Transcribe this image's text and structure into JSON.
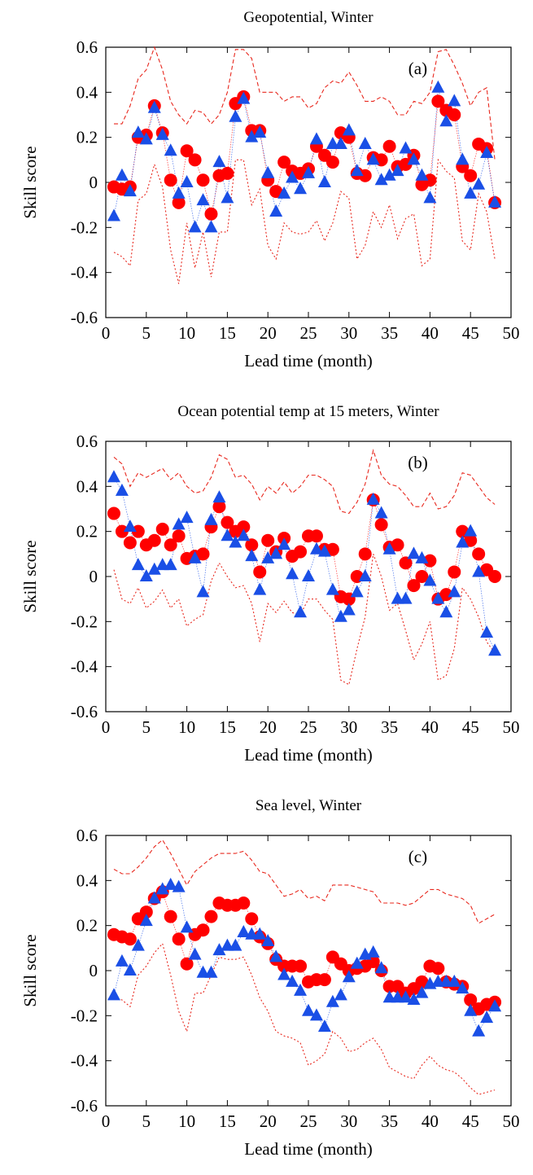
{
  "colors": {
    "red": "#ff0000",
    "blue": "#1a4fe6",
    "bound": "#e8281e",
    "axis": "#000000"
  },
  "chart_data": [
    {
      "type": "scatter",
      "panel_label": "(a)",
      "title": "Geopotential, Winter",
      "xlabel": "Lead time (month)",
      "ylabel": "Skill score",
      "xlim": [
        0,
        50
      ],
      "ylim": [
        -0.6,
        0.6
      ],
      "xticks": [
        "0",
        "5",
        "10",
        "15",
        "20",
        "25",
        "30",
        "35",
        "40",
        "45",
        "50"
      ],
      "yticks": [
        "-0.6",
        "-0.4",
        "-0.2",
        "0",
        "0.2",
        "0.4",
        "0.6"
      ],
      "grid": false,
      "x": [
        1,
        2,
        3,
        4,
        5,
        6,
        7,
        8,
        9,
        10,
        11,
        12,
        13,
        14,
        15,
        16,
        17,
        18,
        19,
        20,
        21,
        22,
        23,
        24,
        25,
        26,
        27,
        28,
        29,
        30,
        31,
        32,
        33,
        34,
        35,
        36,
        37,
        38,
        39,
        40,
        41,
        42,
        43,
        44,
        45,
        46,
        47,
        48
      ],
      "series": [
        {
          "marker": "circle",
          "color": "red",
          "values": [
            -0.02,
            -0.03,
            -0.02,
            0.2,
            0.21,
            0.34,
            0.22,
            0.01,
            -0.09,
            0.14,
            0.1,
            0.01,
            -0.14,
            0.03,
            0.04,
            0.35,
            0.38,
            0.23,
            0.23,
            0.01,
            -0.04,
            0.09,
            0.05,
            0.04,
            0.06,
            0.16,
            0.12,
            0.09,
            0.22,
            0.2,
            0.04,
            0.03,
            0.11,
            0.1,
            0.16,
            0.07,
            0.08,
            0.12,
            -0.01,
            0.01,
            0.36,
            0.32,
            0.3,
            0.07,
            0.03,
            0.17,
            0.15,
            -0.09
          ]
        },
        {
          "marker": "triangle",
          "color": "blue",
          "values": [
            -0.15,
            0.03,
            -0.04,
            0.22,
            0.19,
            0.33,
            0.21,
            0.14,
            -0.05,
            0.0,
            -0.2,
            -0.08,
            -0.2,
            0.09,
            -0.07,
            0.29,
            0.37,
            0.2,
            0.22,
            0.04,
            -0.13,
            -0.05,
            0.02,
            -0.03,
            0.04,
            0.19,
            0.0,
            0.17,
            0.17,
            0.23,
            0.05,
            0.17,
            0.1,
            0.01,
            0.03,
            0.05,
            0.15,
            0.1,
            0.03,
            -0.07,
            0.42,
            0.27,
            0.36,
            0.1,
            -0.05,
            -0.01,
            0.13,
            -0.09
          ]
        },
        {
          "style": "dashed",
          "color": "bound",
          "values": [
            0.26,
            0.26,
            0.34,
            0.46,
            0.5,
            0.6,
            0.5,
            0.36,
            0.3,
            0.26,
            0.32,
            0.31,
            0.26,
            0.3,
            0.4,
            0.59,
            0.59,
            0.55,
            0.4,
            0.4,
            0.4,
            0.36,
            0.38,
            0.38,
            0.33,
            0.35,
            0.42,
            0.45,
            0.44,
            0.49,
            0.43,
            0.36,
            0.36,
            0.38,
            0.36,
            0.3,
            0.3,
            0.36,
            0.35,
            0.4,
            0.58,
            0.59,
            0.52,
            0.44,
            0.34,
            0.4,
            0.42,
            0.1
          ]
        },
        {
          "style": "dotted",
          "color": "bound",
          "values": [
            -0.31,
            -0.33,
            -0.37,
            -0.08,
            -0.05,
            0.08,
            -0.02,
            -0.3,
            -0.45,
            -0.18,
            -0.38,
            -0.22,
            -0.42,
            -0.22,
            -0.22,
            0.1,
            0.1,
            -0.1,
            -0.03,
            -0.28,
            -0.34,
            -0.18,
            -0.22,
            -0.23,
            -0.22,
            -0.17,
            -0.26,
            -0.18,
            -0.04,
            -0.07,
            -0.34,
            -0.28,
            -0.13,
            -0.2,
            -0.1,
            -0.25,
            -0.16,
            -0.14,
            -0.37,
            -0.34,
            0.1,
            0.05,
            0.02,
            -0.26,
            -0.3,
            -0.05,
            -0.13,
            -0.34
          ]
        }
      ]
    },
    {
      "type": "scatter",
      "panel_label": "(b)",
      "title": "Ocean potential temp at 15 meters, Winter",
      "xlabel": "Lead time (month)",
      "ylabel": "Skill score",
      "xlim": [
        0,
        50
      ],
      "ylim": [
        -0.6,
        0.6
      ],
      "xticks": [
        "0",
        "5",
        "10",
        "15",
        "20",
        "25",
        "30",
        "35",
        "40",
        "45",
        "50"
      ],
      "yticks": [
        "-0.6",
        "-0.4",
        "-0.2",
        "0",
        "0.2",
        "0.4",
        "0.6"
      ],
      "grid": false,
      "x": [
        1,
        2,
        3,
        4,
        5,
        6,
        7,
        8,
        9,
        10,
        11,
        12,
        13,
        14,
        15,
        16,
        17,
        18,
        19,
        20,
        21,
        22,
        23,
        24,
        25,
        26,
        27,
        28,
        29,
        30,
        31,
        32,
        33,
        34,
        35,
        36,
        37,
        38,
        39,
        40,
        41,
        42,
        43,
        44,
        45,
        46,
        47,
        48
      ],
      "series": [
        {
          "marker": "circle",
          "color": "red",
          "values": [
            0.28,
            0.2,
            0.15,
            0.2,
            0.14,
            0.16,
            0.21,
            0.14,
            0.18,
            0.08,
            0.09,
            0.1,
            0.22,
            0.31,
            0.24,
            0.2,
            0.22,
            0.14,
            0.02,
            0.16,
            0.11,
            0.17,
            0.09,
            0.11,
            0.18,
            0.18,
            0.12,
            0.12,
            -0.09,
            -0.1,
            0.0,
            0.1,
            0.34,
            0.23,
            0.13,
            0.14,
            0.06,
            -0.04,
            0.0,
            0.07,
            -0.1,
            -0.08,
            0.02,
            0.2,
            0.16,
            0.1,
            0.03,
            0.0
          ]
        },
        {
          "marker": "triangle",
          "color": "blue",
          "values": [
            0.44,
            0.38,
            0.22,
            0.05,
            0.0,
            0.03,
            0.05,
            0.05,
            0.23,
            0.26,
            0.08,
            -0.07,
            0.25,
            0.35,
            0.18,
            0.15,
            0.18,
            0.09,
            -0.06,
            0.08,
            0.1,
            0.14,
            0.01,
            -0.16,
            0.0,
            0.12,
            0.11,
            -0.06,
            -0.18,
            -0.15,
            -0.07,
            0.0,
            0.34,
            0.28,
            0.12,
            -0.1,
            -0.1,
            0.1,
            0.08,
            -0.02,
            -0.1,
            -0.16,
            -0.07,
            0.15,
            0.2,
            0.02,
            -0.25,
            -0.33
          ]
        },
        {
          "style": "dashed",
          "color": "bound",
          "values": [
            0.53,
            0.5,
            0.4,
            0.46,
            0.44,
            0.46,
            0.48,
            0.43,
            0.46,
            0.4,
            0.37,
            0.38,
            0.44,
            0.54,
            0.52,
            0.44,
            0.45,
            0.41,
            0.34,
            0.4,
            0.37,
            0.42,
            0.37,
            0.4,
            0.45,
            0.45,
            0.43,
            0.4,
            0.29,
            0.28,
            0.33,
            0.41,
            0.56,
            0.45,
            0.41,
            0.4,
            0.36,
            0.31,
            0.31,
            0.37,
            0.3,
            0.31,
            0.36,
            0.46,
            0.45,
            0.4,
            0.35,
            0.32
          ]
        },
        {
          "style": "dotted",
          "color": "bound",
          "values": [
            0.03,
            -0.1,
            -0.12,
            -0.05,
            -0.14,
            -0.11,
            -0.06,
            -0.14,
            -0.1,
            -0.22,
            -0.19,
            -0.17,
            -0.02,
            0.06,
            0.0,
            -0.05,
            -0.04,
            -0.12,
            -0.29,
            -0.12,
            -0.16,
            -0.11,
            -0.16,
            -0.17,
            -0.1,
            -0.1,
            -0.15,
            -0.19,
            -0.46,
            -0.48,
            -0.32,
            -0.18,
            0.1,
            0.0,
            -0.15,
            -0.12,
            -0.24,
            -0.37,
            -0.3,
            -0.2,
            -0.46,
            -0.44,
            -0.32,
            -0.05,
            -0.1,
            -0.18,
            -0.29,
            -0.34
          ]
        }
      ]
    },
    {
      "type": "scatter",
      "panel_label": "(c)",
      "title": "Sea level, Winter",
      "xlabel": "Lead time (month)",
      "ylabel": "Skill score",
      "xlim": [
        0,
        50
      ],
      "ylim": [
        -0.6,
        0.6
      ],
      "xticks": [
        "0",
        "5",
        "10",
        "15",
        "20",
        "25",
        "30",
        "35",
        "40",
        "45",
        "50"
      ],
      "yticks": [
        "-0.6",
        "-0.4",
        "-0.2",
        "0",
        "0.2",
        "0.4",
        "0.6"
      ],
      "grid": false,
      "x": [
        1,
        2,
        3,
        4,
        5,
        6,
        7,
        8,
        9,
        10,
        11,
        12,
        13,
        14,
        15,
        16,
        17,
        18,
        19,
        20,
        21,
        22,
        23,
        24,
        25,
        26,
        27,
        28,
        29,
        30,
        31,
        32,
        33,
        34,
        35,
        36,
        37,
        38,
        39,
        40,
        41,
        42,
        43,
        44,
        45,
        46,
        47,
        48
      ],
      "series": [
        {
          "marker": "circle",
          "color": "red",
          "values": [
            0.16,
            0.15,
            0.14,
            0.23,
            0.26,
            0.32,
            0.35,
            0.24,
            0.14,
            0.03,
            0.16,
            0.18,
            0.24,
            0.3,
            0.29,
            0.29,
            0.3,
            0.23,
            0.15,
            0.12,
            0.05,
            0.02,
            0.02,
            0.02,
            -0.05,
            -0.04,
            -0.04,
            0.06,
            0.03,
            0.0,
            0.01,
            0.02,
            0.04,
            0.0,
            -0.07,
            -0.07,
            -0.1,
            -0.08,
            -0.05,
            0.02,
            0.01,
            -0.05,
            -0.06,
            -0.07,
            -0.13,
            -0.17,
            -0.15,
            -0.14
          ]
        },
        {
          "marker": "triangle",
          "color": "blue",
          "values": [
            -0.11,
            0.04,
            0.0,
            0.11,
            0.22,
            0.32,
            0.36,
            0.38,
            0.37,
            0.19,
            0.07,
            -0.01,
            -0.01,
            0.09,
            0.11,
            0.11,
            0.17,
            0.16,
            0.16,
            0.13,
            0.06,
            -0.02,
            -0.05,
            -0.09,
            -0.18,
            -0.2,
            -0.25,
            -0.14,
            -0.11,
            -0.03,
            0.03,
            0.07,
            0.08,
            0.01,
            -0.12,
            -0.12,
            -0.12,
            -0.13,
            -0.1,
            -0.06,
            -0.05,
            -0.05,
            -0.05,
            -0.08,
            -0.18,
            -0.27,
            -0.21,
            -0.16
          ]
        },
        {
          "style": "dashed",
          "color": "bound",
          "values": [
            0.45,
            0.43,
            0.43,
            0.46,
            0.5,
            0.55,
            0.58,
            0.52,
            0.45,
            0.38,
            0.44,
            0.47,
            0.5,
            0.52,
            0.52,
            0.52,
            0.53,
            0.49,
            0.44,
            0.43,
            0.38,
            0.33,
            0.34,
            0.36,
            0.32,
            0.33,
            0.31,
            0.38,
            0.38,
            0.38,
            0.37,
            0.36,
            0.35,
            0.3,
            0.3,
            0.3,
            0.29,
            0.3,
            0.33,
            0.36,
            0.36,
            0.34,
            0.33,
            0.32,
            0.29,
            0.21,
            0.23,
            0.25
          ]
        },
        {
          "style": "dotted",
          "color": "bound",
          "values": [
            -0.12,
            -0.13,
            -0.16,
            -0.02,
            0.02,
            0.08,
            0.12,
            -0.02,
            -0.18,
            -0.27,
            -0.1,
            -0.1,
            -0.02,
            0.06,
            0.05,
            0.05,
            0.06,
            -0.02,
            -0.12,
            -0.18,
            -0.27,
            -0.29,
            -0.3,
            -0.32,
            -0.42,
            -0.4,
            -0.37,
            -0.27,
            -0.3,
            -0.36,
            -0.35,
            -0.32,
            -0.3,
            -0.35,
            -0.43,
            -0.45,
            -0.47,
            -0.48,
            -0.42,
            -0.38,
            -0.42,
            -0.44,
            -0.45,
            -0.48,
            -0.52,
            -0.55,
            -0.54,
            -0.53
          ]
        }
      ]
    }
  ]
}
